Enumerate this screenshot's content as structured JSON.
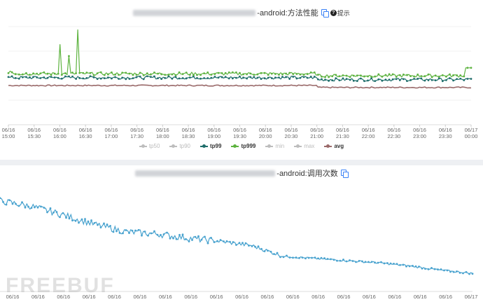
{
  "panel1": {
    "title_suffix": "-android:方法性能",
    "help_label": "提示",
    "x_ticks": [
      [
        "06/16",
        "15:00"
      ],
      [
        "06/16",
        "15:30"
      ],
      [
        "06/16",
        "16:00"
      ],
      [
        "06/16",
        "16:30"
      ],
      [
        "06/16",
        "17:00"
      ],
      [
        "06/16",
        "17:30"
      ],
      [
        "06/16",
        "18:00"
      ],
      [
        "06/16",
        "18:30"
      ],
      [
        "06/16",
        "19:00"
      ],
      [
        "06/16",
        "19:30"
      ],
      [
        "06/16",
        "20:00"
      ],
      [
        "06/16",
        "20:30"
      ],
      [
        "06/16",
        "21:00"
      ],
      [
        "06/16",
        "21:30"
      ],
      [
        "06/16",
        "22:00"
      ],
      [
        "06/16",
        "22:30"
      ],
      [
        "06/16",
        "23:00"
      ],
      [
        "06/16",
        "23:30"
      ],
      [
        "06/17",
        "00:00"
      ]
    ]
  },
  "panel2": {
    "title_suffix": "-android:调用次数",
    "x_ticks": [
      [
        "06/16",
        ""
      ],
      [
        "06/16",
        ""
      ],
      [
        "06/16",
        ""
      ],
      [
        "06/16",
        ""
      ],
      [
        "06/16",
        ""
      ],
      [
        "06/16",
        ""
      ],
      [
        "06/16",
        ""
      ],
      [
        "06/16",
        ""
      ],
      [
        "06/16",
        ""
      ],
      [
        "06/16",
        ""
      ],
      [
        "06/16",
        ""
      ],
      [
        "06/16",
        ""
      ],
      [
        "06/16",
        ""
      ],
      [
        "06/16",
        ""
      ],
      [
        "06/16",
        ""
      ],
      [
        "06/16",
        ""
      ],
      [
        "06/16",
        ""
      ],
      [
        "06/16",
        ""
      ],
      [
        "06/17",
        ""
      ]
    ]
  },
  "legend": [
    {
      "label": "tp50",
      "color": "#bdbdbd",
      "active": false
    },
    {
      "label": "tp90",
      "color": "#bdbdbd",
      "active": false
    },
    {
      "label": "tp99",
      "color": "#1f6e6b",
      "active": true
    },
    {
      "label": "tp999",
      "color": "#5db33f",
      "active": true
    },
    {
      "label": "min",
      "color": "#bdbdbd",
      "active": false
    },
    {
      "label": "max",
      "color": "#bdbdbd",
      "active": false
    },
    {
      "label": "avg",
      "color": "#9a6a6a",
      "active": true
    }
  ],
  "watermark": "FREEBUF",
  "chart_data": [
    {
      "type": "line",
      "title": "-android:方法性能",
      "x_range": [
        "06/16 15:00",
        "06/17 00:00"
      ],
      "series": [
        {
          "name": "tp999",
          "color": "#5db33f",
          "level_before_2100": 0.52,
          "level_after_2100": 0.5,
          "spikes": [
            {
              "x": "06/16 16:00",
              "v": 0.82
            },
            {
              "x": "06/16 16:10",
              "v": 0.7
            },
            {
              "x": "06/16 16:20",
              "v": 0.97
            }
          ]
        },
        {
          "name": "tp99",
          "color": "#1f6e6b",
          "level_before_2100": 0.48,
          "level_after_2100": 0.46
        },
        {
          "name": "avg",
          "color": "#9a6a6a",
          "level_before_2100": 0.4,
          "level_after_2100": 0.38
        }
      ]
    },
    {
      "type": "line",
      "title": "-android:调用次数",
      "x_range": [
        "06/16",
        "06/17"
      ],
      "series": [
        {
          "color": "#4aa3cf",
          "trend": [
            0.85,
            0.8,
            0.72,
            0.63,
            0.56,
            0.54,
            0.5,
            0.47,
            0.43,
            0.33,
            0.31,
            0.29,
            0.27,
            0.24,
            0.2,
            0.17
          ]
        }
      ]
    }
  ]
}
